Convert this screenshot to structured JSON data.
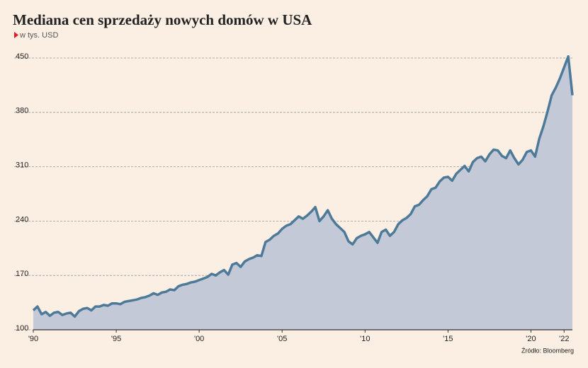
{
  "chart_data": {
    "type": "area",
    "title": "Mediana cen sprzedaży nowych domów w USA",
    "subtitle": "w tys. USD",
    "source": "Źródło: Bloomberg",
    "xlim": [
      1990,
      2022.5
    ],
    "xticks": [
      {
        "value": 1990,
        "label": "'90"
      },
      {
        "value": 1995,
        "label": "'95"
      },
      {
        "value": 2000,
        "label": "'00"
      },
      {
        "value": 2005,
        "label": "'05"
      },
      {
        "value": 2010,
        "label": "'10"
      },
      {
        "value": 2015,
        "label": "'15"
      },
      {
        "value": 2020,
        "label": "'20"
      },
      {
        "value": 2022,
        "label": "'22"
      }
    ],
    "ylim": [
      100,
      450
    ],
    "yticks": [
      100,
      170,
      240,
      310,
      380,
      450
    ],
    "grid": true,
    "series": [
      {
        "name": "Mediana",
        "color": "#4e7a99",
        "fill": "#c3c9d7",
        "x": [
          1990,
          1990.25,
          1990.5,
          1990.75,
          1991,
          1991.25,
          1991.5,
          1991.75,
          1992,
          1992.25,
          1992.5,
          1992.75,
          1993,
          1993.25,
          1993.5,
          1993.75,
          1994,
          1994.25,
          1994.5,
          1994.75,
          1995,
          1995.25,
          1995.5,
          1995.75,
          1996,
          1996.25,
          1996.5,
          1996.75,
          1997,
          1997.25,
          1997.5,
          1997.75,
          1998,
          1998.25,
          1998.5,
          1998.75,
          1999,
          1999.25,
          1999.5,
          1999.75,
          2000,
          2000.25,
          2000.5,
          2000.75,
          2001,
          2001.25,
          2001.5,
          2001.75,
          2002,
          2002.25,
          2002.5,
          2002.75,
          2003,
          2003.25,
          2003.5,
          2003.75,
          2004,
          2004.25,
          2004.5,
          2004.75,
          2005,
          2005.25,
          2005.5,
          2005.75,
          2006,
          2006.25,
          2006.5,
          2006.75,
          2007,
          2007.25,
          2007.5,
          2007.75,
          2008,
          2008.25,
          2008.5,
          2008.75,
          2009,
          2009.25,
          2009.5,
          2009.75,
          2010,
          2010.25,
          2010.5,
          2010.75,
          2011,
          2011.25,
          2011.5,
          2011.75,
          2012,
          2012.25,
          2012.5,
          2012.75,
          2013,
          2013.25,
          2013.5,
          2013.75,
          2014,
          2014.25,
          2014.5,
          2014.75,
          2015,
          2015.25,
          2015.5,
          2015.75,
          2016,
          2016.25,
          2016.5,
          2016.75,
          2017,
          2017.25,
          2017.5,
          2017.75,
          2018,
          2018.25,
          2018.5,
          2018.75,
          2019,
          2019.25,
          2019.5,
          2019.75,
          2020,
          2020.25,
          2020.5,
          2020.75,
          2021,
          2021.25,
          2021.5,
          2021.75,
          2022,
          2022.25,
          2022.5
        ],
        "values": [
          125,
          130,
          120,
          123,
          118,
          122,
          123,
          119,
          121,
          122,
          117,
          124,
          127,
          128,
          125,
          130,
          130,
          132,
          131,
          134,
          134,
          133,
          136,
          137,
          138,
          139,
          141,
          142,
          144,
          147,
          145,
          148,
          149,
          152,
          151,
          156,
          158,
          159,
          161,
          162,
          164,
          166,
          168,
          172,
          170,
          174,
          177,
          171,
          184,
          186,
          181,
          188,
          191,
          193,
          196,
          195,
          213,
          216,
          221,
          224,
          230,
          234,
          236,
          241,
          246,
          243,
          247,
          252,
          258,
          240,
          246,
          254,
          243,
          236,
          231,
          226,
          214,
          210,
          218,
          221,
          223,
          226,
          219,
          212,
          226,
          229,
          221,
          226,
          236,
          241,
          244,
          249,
          259,
          261,
          267,
          272,
          281,
          283,
          291,
          296,
          297,
          292,
          301,
          306,
          311,
          304,
          316,
          321,
          323,
          317,
          326,
          332,
          331,
          324,
          321,
          331,
          321,
          313,
          319,
          329,
          331,
          323,
          346,
          362,
          381,
          402,
          412,
          424,
          438,
          452,
          402
        ]
      }
    ]
  }
}
